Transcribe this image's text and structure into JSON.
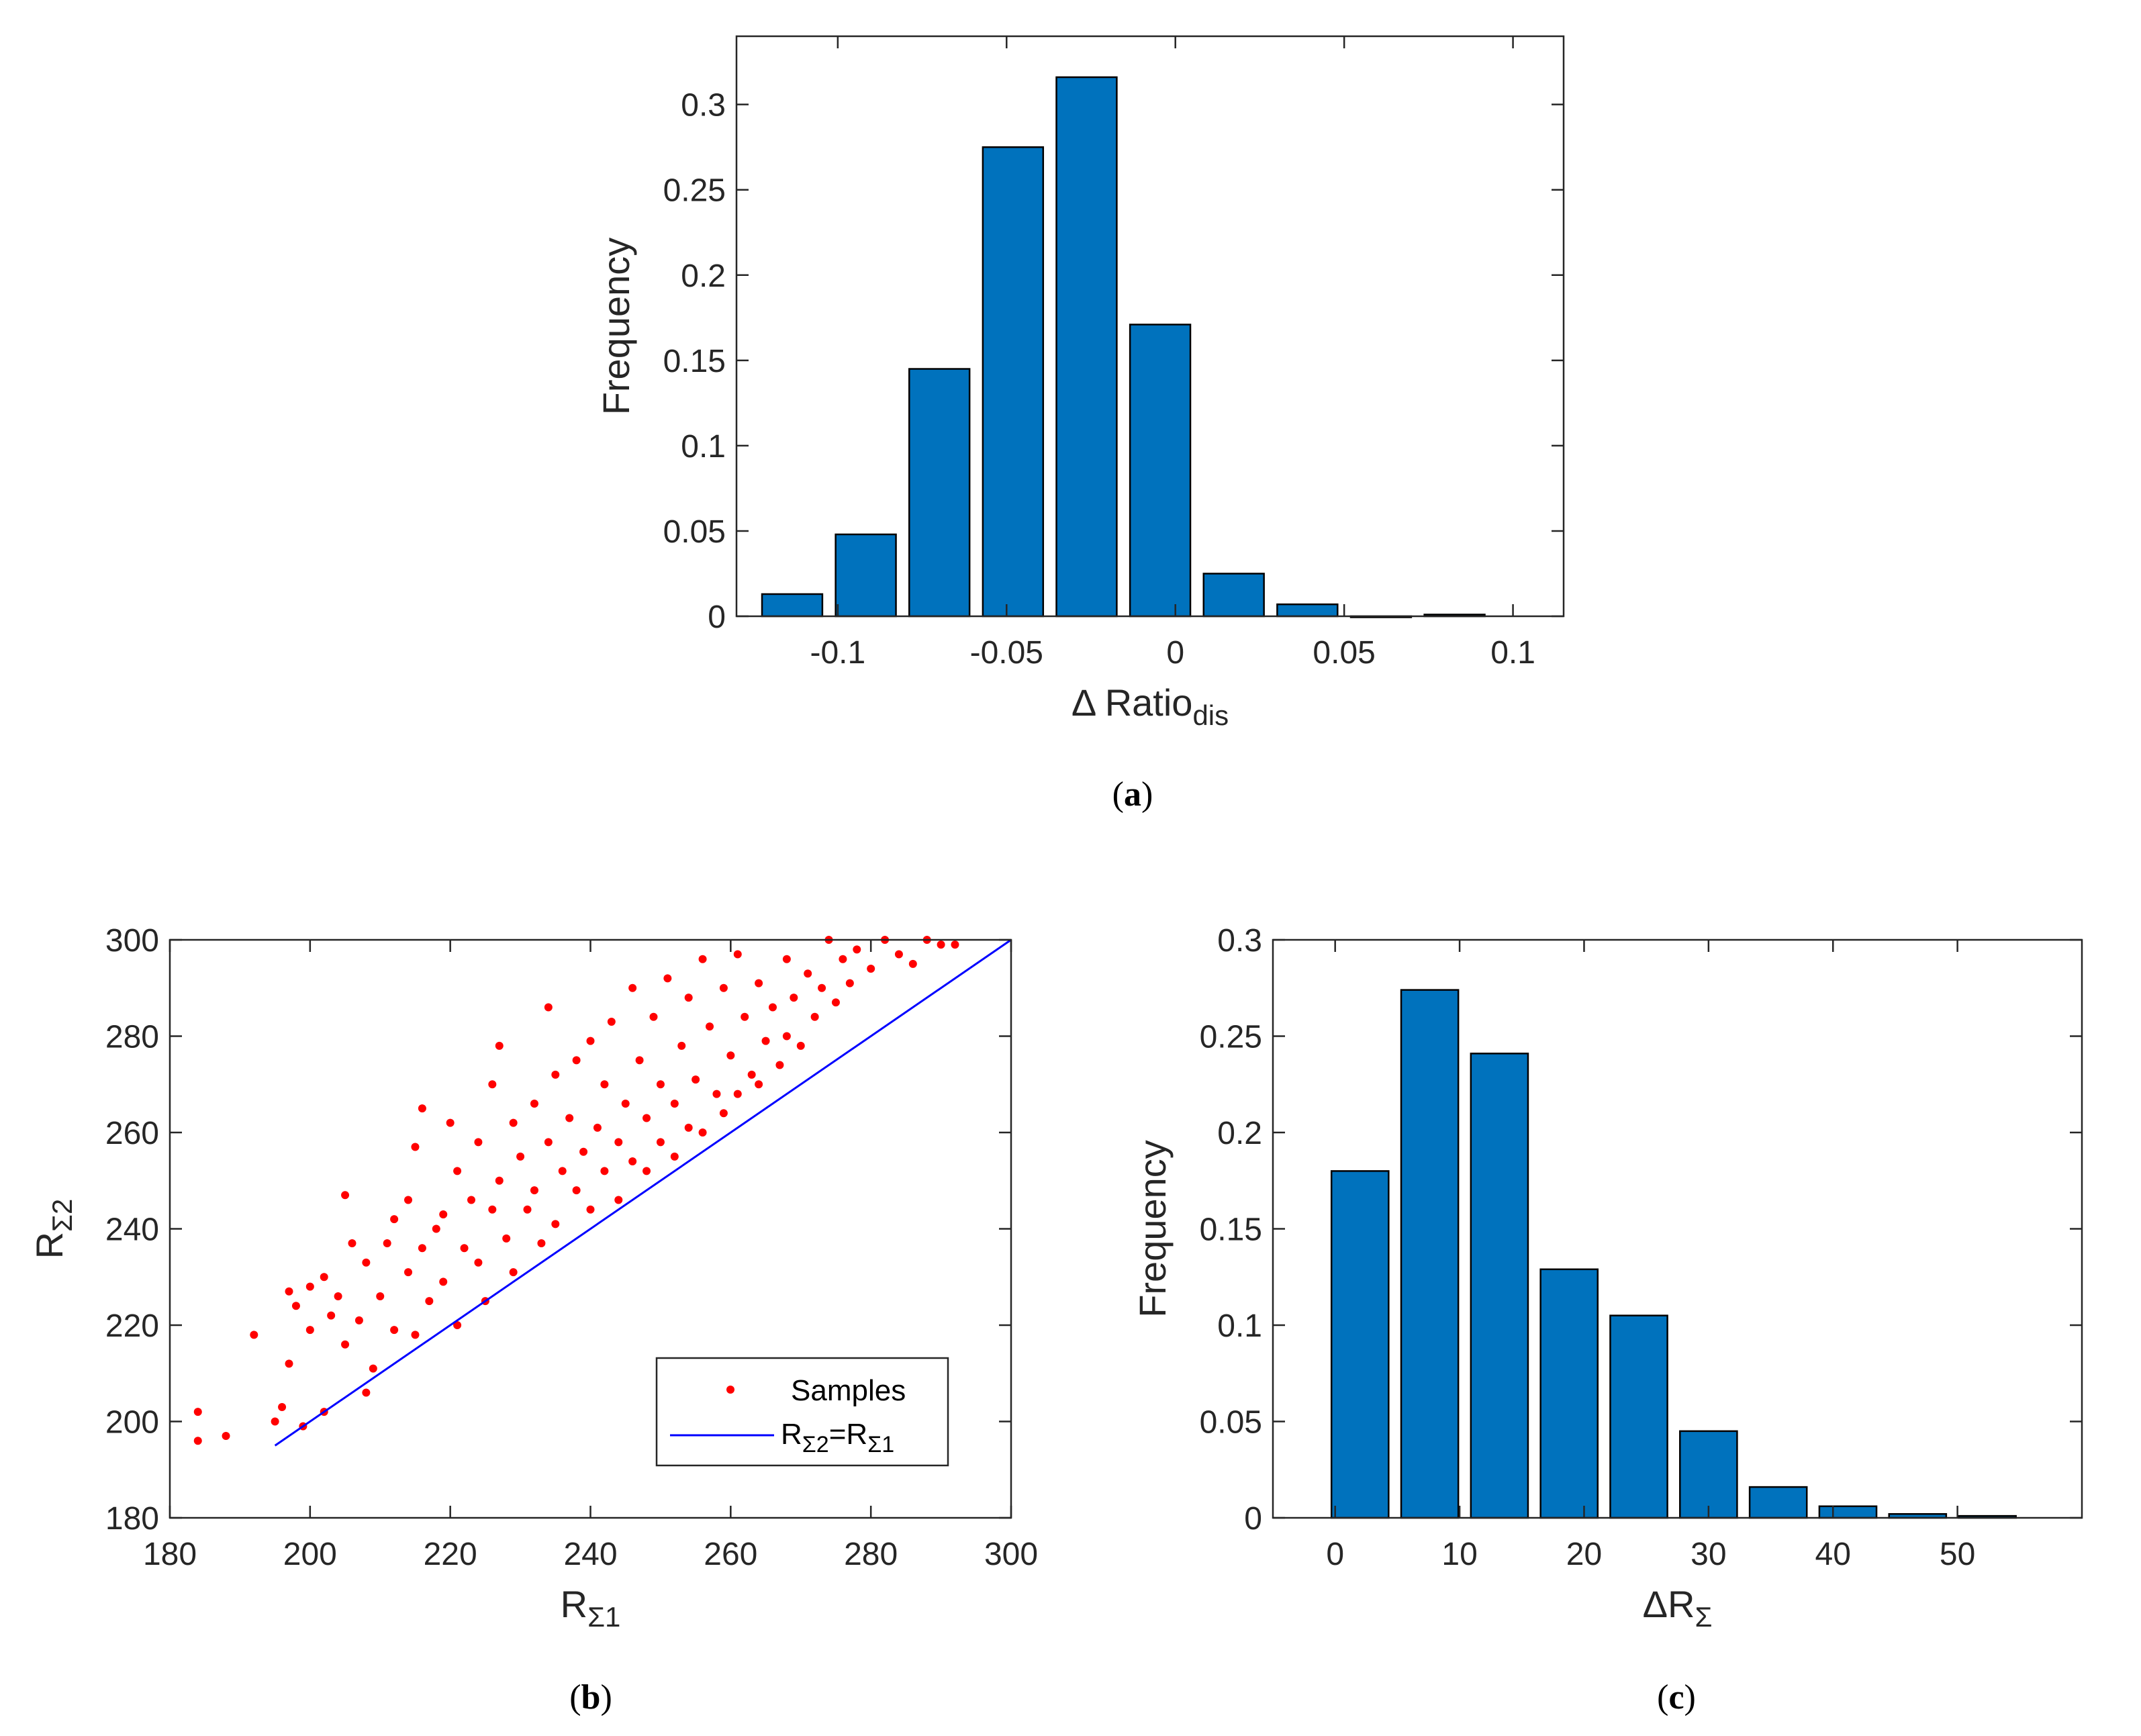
{
  "chart_data": [
    {
      "id": "a",
      "type": "bar",
      "caption_letter": "a",
      "xlabel": "Δ Ratio",
      "xlabel_sub": "dis",
      "ylabel": "Frequency",
      "xlim": [
        -0.13,
        0.115
      ],
      "ylim": [
        0,
        0.34
      ],
      "xticks": [
        -0.1,
        -0.05,
        0,
        0.05,
        0.1
      ],
      "xtick_labels": [
        "-0.1",
        "-0.05",
        "0",
        "0.05",
        "0.1"
      ],
      "yticks": [
        0,
        0.05,
        0.1,
        0.15,
        0.2,
        0.25,
        0.3
      ],
      "ytick_labels": [
        "0",
        "0.05",
        "0.1",
        "0.15",
        "0.2",
        "0.25",
        "0.3"
      ],
      "bin_width": 0.0218,
      "bar_fraction": 0.82,
      "x": [
        -0.1135,
        -0.0917,
        -0.0699,
        -0.0481,
        -0.0263,
        -0.0045,
        0.0173,
        0.0391,
        0.0609,
        0.0827
      ],
      "values": [
        0.013,
        0.048,
        0.145,
        0.275,
        0.316,
        0.171,
        0.025,
        0.007,
        0.0,
        0.001
      ],
      "color": "#0072BD"
    },
    {
      "id": "b",
      "type": "scatter",
      "caption_letter": "b",
      "xlabel": "R",
      "xlabel_sub": "Σ1",
      "ylabel": "R",
      "ylabel_sub": "Σ2",
      "xlim": [
        180,
        300
      ],
      "ylim": [
        180,
        300
      ],
      "xticks": [
        180,
        200,
        220,
        240,
        260,
        280,
        300
      ],
      "xtick_labels": [
        "180",
        "200",
        "220",
        "240",
        "260",
        "280",
        "300"
      ],
      "yticks": [
        180,
        200,
        220,
        240,
        260,
        280,
        300
      ],
      "ytick_labels": [
        "180",
        "200",
        "220",
        "240",
        "260",
        "280",
        "300"
      ],
      "series": [
        {
          "name": "Samples",
          "color": "#FF0000",
          "points": [
            [
              184,
              202
            ],
            [
              184,
              196
            ],
            [
              188,
              197
            ],
            [
              192,
              218
            ],
            [
              195,
              200
            ],
            [
              196,
              203
            ],
            [
              197,
              212
            ],
            [
              197,
              227
            ],
            [
              198,
              224
            ],
            [
              199,
              199
            ],
            [
              200,
              219
            ],
            [
              200,
              228
            ],
            [
              202,
              230
            ],
            [
              202,
              202
            ],
            [
              203,
              222
            ],
            [
              204,
              226
            ],
            [
              205,
              247
            ],
            [
              205,
              216
            ],
            [
              206,
              237
            ],
            [
              207,
              221
            ],
            [
              208,
              206
            ],
            [
              208,
              233
            ],
            [
              209,
              211
            ],
            [
              210,
              226
            ],
            [
              211,
              237
            ],
            [
              212,
              242
            ],
            [
              212,
              219
            ],
            [
              214,
              231
            ],
            [
              214,
              246
            ],
            [
              215,
              218
            ],
            [
              215,
              257
            ],
            [
              216,
              265
            ],
            [
              216,
              236
            ],
            [
              217,
              225
            ],
            [
              218,
              240
            ],
            [
              219,
              243
            ],
            [
              219,
              229
            ],
            [
              220,
              262
            ],
            [
              221,
              220
            ],
            [
              221,
              252
            ],
            [
              222,
              236
            ],
            [
              223,
              246
            ],
            [
              224,
              233
            ],
            [
              224,
              258
            ],
            [
              225,
              225
            ],
            [
              226,
              244
            ],
            [
              226,
              270
            ],
            [
              227,
              278
            ],
            [
              227,
              250
            ],
            [
              228,
              238
            ],
            [
              229,
              262
            ],
            [
              229,
              231
            ],
            [
              230,
              255
            ],
            [
              231,
              244
            ],
            [
              232,
              266
            ],
            [
              232,
              248
            ],
            [
              233,
              237
            ],
            [
              234,
              286
            ],
            [
              234,
              258
            ],
            [
              235,
              272
            ],
            [
              235,
              241
            ],
            [
              236,
              252
            ],
            [
              237,
              263
            ],
            [
              238,
              248
            ],
            [
              238,
              275
            ],
            [
              239,
              256
            ],
            [
              240,
              279
            ],
            [
              240,
              244
            ],
            [
              241,
              261
            ],
            [
              242,
              270
            ],
            [
              242,
              252
            ],
            [
              243,
              283
            ],
            [
              244,
              258
            ],
            [
              244,
              246
            ],
            [
              245,
              266
            ],
            [
              246,
              290
            ],
            [
              246,
              254
            ],
            [
              247,
              275
            ],
            [
              248,
              263
            ],
            [
              248,
              252
            ],
            [
              249,
              284
            ],
            [
              250,
              270
            ],
            [
              250,
              258
            ],
            [
              251,
              292
            ],
            [
              252,
              266
            ],
            [
              252,
              255
            ],
            [
              253,
              278
            ],
            [
              254,
              288
            ],
            [
              254,
              261
            ],
            [
              255,
              271
            ],
            [
              256,
              296
            ],
            [
              256,
              260
            ],
            [
              257,
              282
            ],
            [
              258,
              268
            ],
            [
              259,
              290
            ],
            [
              259,
              264
            ],
            [
              260,
              276
            ],
            [
              261,
              297
            ],
            [
              261,
              268
            ],
            [
              262,
              284
            ],
            [
              263,
              272
            ],
            [
              264,
              291
            ],
            [
              264,
              270
            ],
            [
              265,
              279
            ],
            [
              266,
              286
            ],
            [
              267,
              274
            ],
            [
              268,
              296
            ],
            [
              268,
              280
            ],
            [
              269,
              288
            ],
            [
              270,
              278
            ],
            [
              271,
              293
            ],
            [
              272,
              284
            ],
            [
              273,
              290
            ],
            [
              274,
              300
            ],
            [
              275,
              287
            ],
            [
              276,
              296
            ],
            [
              277,
              291
            ],
            [
              278,
              298
            ],
            [
              280,
              294
            ],
            [
              282,
              300
            ],
            [
              284,
              297
            ],
            [
              286,
              295
            ],
            [
              288,
              300
            ],
            [
              290,
              299
            ],
            [
              292,
              299
            ]
          ]
        },
        {
          "name": "R",
          "name_sub_a": "Σ2",
          "name_mid": "=R",
          "name_sub_b": "Σ1",
          "color": "#0000FF",
          "line": [
            [
              195,
              195
            ],
            [
              300,
              300
            ]
          ]
        }
      ],
      "legend_location": "bottom-right"
    },
    {
      "id": "c",
      "type": "bar",
      "caption_letter": "c",
      "xlabel": "ΔR",
      "xlabel_sub": "Σ",
      "ylabel": "Frequency",
      "xlim": [
        -5,
        60
      ],
      "ylim": [
        0,
        0.3
      ],
      "xticks": [
        0,
        10,
        20,
        30,
        40,
        50
      ],
      "xtick_labels": [
        "0",
        "10",
        "20",
        "30",
        "40",
        "50"
      ],
      "yticks": [
        0,
        0.05,
        0.1,
        0.15,
        0.2,
        0.25,
        0.3
      ],
      "ytick_labels": [
        "0",
        "0.05",
        "0.1",
        "0.15",
        "0.2",
        "0.25",
        "0.3"
      ],
      "bin_width": 5.6,
      "bar_fraction": 0.82,
      "x": [
        2.0,
        7.6,
        13.2,
        18.8,
        24.4,
        30.0,
        35.6,
        41.2,
        46.8,
        52.4
      ],
      "values": [
        0.18,
        0.274,
        0.241,
        0.129,
        0.105,
        0.045,
        0.016,
        0.006,
        0.002,
        0.001
      ],
      "color": "#0072BD"
    }
  ]
}
